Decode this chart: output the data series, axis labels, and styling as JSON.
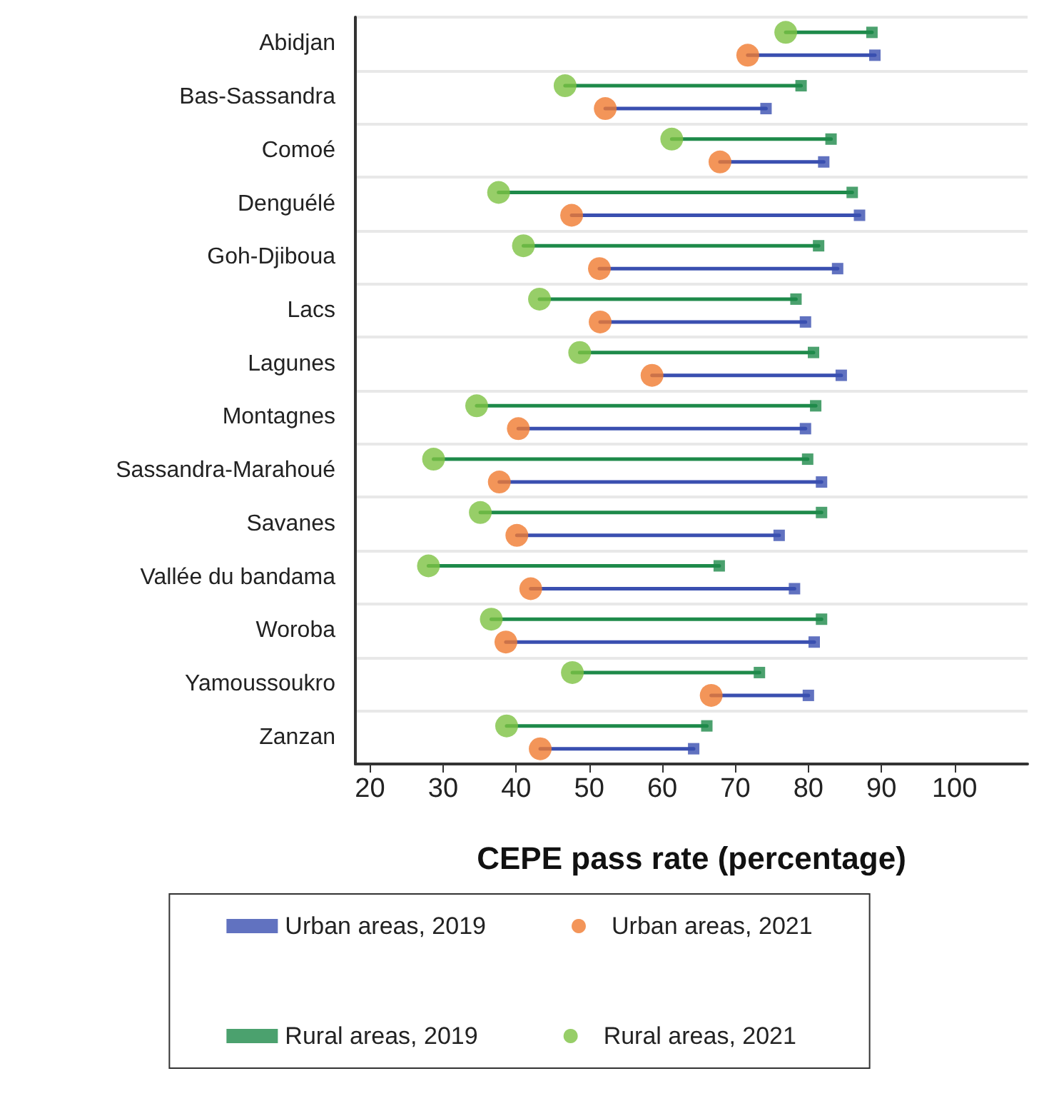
{
  "chart_data": {
    "type": "scatter",
    "xlabel": "CEPE pass rate (percentage)",
    "orientation": "horizontal",
    "categories": [
      "Abidjan",
      "Bas-Sassandra",
      "Comoé",
      "Denguélé",
      "Goh-Djiboua",
      "Lacs",
      "Lagunes",
      "Montagnes",
      "Sassandra-Marahoué",
      "Savanes",
      "Vallée du bandama",
      "Woroba",
      "Yamoussoukro",
      "Zanzan"
    ],
    "series": [
      {
        "name": "Urban areas, 2019",
        "color": "#3a4fb0",
        "marker": "square",
        "values": [
          89.1,
          74.2,
          82.1,
          87.0,
          84.0,
          79.6,
          84.5,
          79.6,
          81.8,
          76.0,
          78.1,
          80.8,
          80.0,
          64.3
        ]
      },
      {
        "name": "Urban areas, 2021",
        "color": "#f07a30",
        "marker": "circle",
        "values": [
          71.7,
          52.2,
          67.9,
          47.6,
          51.4,
          51.5,
          58.6,
          40.3,
          37.7,
          40.1,
          42.0,
          38.6,
          66.7,
          43.3
        ]
      },
      {
        "name": "Rural areas, 2019",
        "color": "#1e8a4a",
        "marker": "square",
        "values": [
          88.7,
          79.0,
          83.1,
          86.0,
          81.4,
          78.3,
          80.7,
          81.0,
          79.9,
          81.8,
          67.8,
          81.8,
          73.3,
          66.1
        ]
      },
      {
        "name": "Rural areas, 2021",
        "color": "#7dc242",
        "marker": "circle",
        "values": [
          76.9,
          46.7,
          61.3,
          37.6,
          41.0,
          43.2,
          48.7,
          34.6,
          28.7,
          35.1,
          28.0,
          36.6,
          47.7,
          38.7
        ]
      }
    ],
    "xlim": [
      18,
      110
    ],
    "xticks": [
      20,
      30,
      40,
      50,
      60,
      70,
      80,
      90,
      100
    ],
    "grid": "y",
    "legend": "bottom"
  }
}
